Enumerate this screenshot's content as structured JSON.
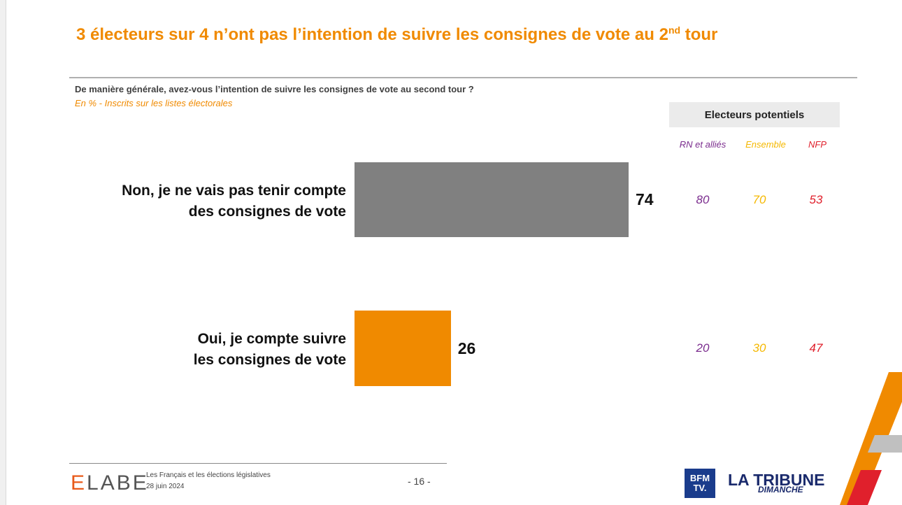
{
  "title_main": "3 électeurs sur 4 n’ont pas l’intention de suivre les consignes de vote au 2",
  "title_sup": "nd",
  "title_end": " tour",
  "question": "De manière générale, avez-vous l’intention de suivre les consignes de vote au second tour ?",
  "subtitle": "En % - Inscrits sur les listes électorales",
  "segments_header": "Electeurs potentiels",
  "segments": [
    {
      "name": "RN et alliés",
      "color": "#7b2d8e"
    },
    {
      "name": "Ensemble",
      "color": "#f5b800"
    },
    {
      "name": "NFP",
      "color": "#e0202c"
    }
  ],
  "chart_data": {
    "type": "bar",
    "orientation": "horizontal",
    "title": "De manière générale, avez-vous l’intention de suivre les consignes de vote au second tour ?",
    "unit": "%",
    "xlim": [
      0,
      100
    ],
    "categories": [
      [
        "Non, je ne vais pas tenir compte",
        "des consignes de vote"
      ],
      [
        "Oui, je compte suivre",
        "les consignes de vote"
      ]
    ],
    "values": [
      74,
      26
    ],
    "bar_colors": [
      "#808080",
      "#f08a00"
    ],
    "segment_values": [
      {
        "segment": "RN et alliés",
        "values": [
          80,
          20
        ]
      },
      {
        "segment": "Ensemble",
        "values": [
          70,
          30
        ]
      },
      {
        "segment": "NFP",
        "values": [
          53,
          47
        ]
      }
    ]
  },
  "footer": {
    "brand": "ELABE",
    "line1": "Les Français et les élections législatives",
    "line2": "28 juin 2024",
    "page": "- 16 -",
    "bfm_top": "BFM",
    "bfm_bottom": "TV.",
    "tribune": "LA TRIBUNE",
    "tribune_sub": "DIMANCHE"
  }
}
